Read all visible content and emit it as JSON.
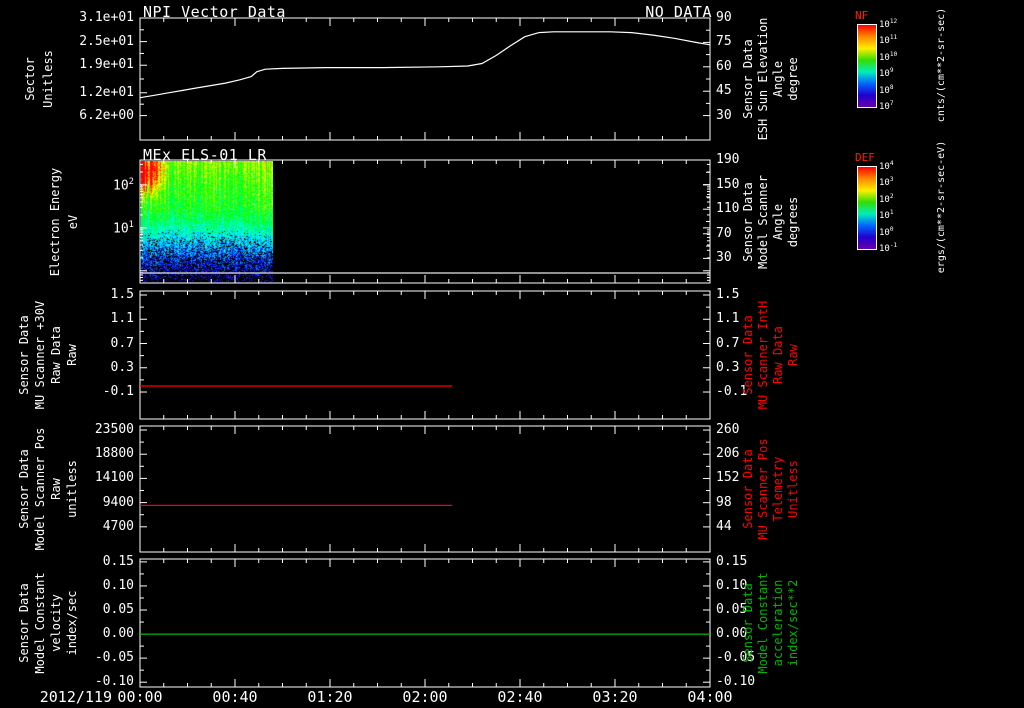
{
  "screen": {
    "background": "#000000",
    "foreground": "#ffffff"
  },
  "x_axis": {
    "date_label": "2012/119",
    "tick_labels": [
      "00:00",
      "00:40",
      "01:20",
      "02:00",
      "02:40",
      "03:20",
      "04:00"
    ],
    "range_hours": [
      0,
      4
    ],
    "major_tick_minutes": 40,
    "minor_tick_minutes": 10
  },
  "colorbars": [
    {
      "title": "NF",
      "title_color": "#ff2200",
      "tick_exponents": [
        12,
        11,
        10,
        9,
        8,
        7
      ],
      "unit": "cnts/(cm**2-sr-sec)"
    },
    {
      "title": "DEF",
      "title_color": "#ff2200",
      "tick_exponents": [
        4,
        3,
        2,
        1,
        0,
        -1
      ],
      "unit": "ergs/(cm**2-sr-sec-eV)"
    }
  ],
  "chart_data": [
    {
      "type": "line",
      "title": "NPI Vector Data",
      "overlay": "NO DATA",
      "left_axis": {
        "name_lines": [
          "Sector",
          "Unitless"
        ],
        "ticks": [
          "3.1e+01",
          "2.5e+01",
          "1.9e+01",
          "1.2e+01",
          "6.2e+00"
        ],
        "ylim": [
          0,
          31
        ],
        "color": "#ffffff"
      },
      "right_axis": {
        "name_lines": [
          "Sensor Data",
          "ESH Sun Elevation",
          "Angle",
          "degree"
        ],
        "ticks": [
          "90",
          "75",
          "60",
          "45",
          "30"
        ],
        "ylim": [
          15,
          90
        ],
        "color": "#ffffff"
      },
      "series": [
        {
          "name": "ESH Sun Elevation Angle",
          "axis": "right",
          "color": "#ffffff",
          "x_hours": [
            0,
            0.1,
            0.2,
            0.3,
            0.4,
            0.5,
            0.6,
            0.7,
            0.78,
            0.82,
            0.88,
            1.0,
            1.3,
            1.7,
            2.1,
            2.3,
            2.4,
            2.5,
            2.6,
            2.7,
            2.8,
            2.9,
            3.1,
            3.3,
            3.45,
            3.6,
            3.75,
            3.9,
            4.0
          ],
          "y": [
            41,
            42.5,
            44,
            45.5,
            47,
            48.5,
            50,
            52,
            54,
            57,
            58.5,
            59,
            59.5,
            59.5,
            60,
            60.5,
            62,
            67,
            73,
            78.5,
            81,
            81.5,
            81.5,
            81.5,
            81,
            79.5,
            77.5,
            75,
            73.5
          ]
        }
      ]
    },
    {
      "type": "spectrogram",
      "title": "MEx ELS-01 LR",
      "left_axis": {
        "name_lines": [
          "Electron Energy",
          "eV"
        ],
        "ticks": [
          "10^2",
          "10^1"
        ],
        "scale": "log",
        "ylim": [
          0.52,
          380
        ],
        "color": "#ffffff"
      },
      "right_axis": {
        "name_lines": [
          "Sensor Data",
          "Model Scanner",
          "Angle",
          "degrees"
        ],
        "ticks": [
          "190",
          "150",
          "110",
          "70",
          "30"
        ],
        "ylim": [
          -10,
          190
        ],
        "color": "#ffffff"
      },
      "spectrogram": {
        "time_extent_hours": [
          0,
          0.93
        ],
        "energy_range_ev": [
          0.52,
          380
        ],
        "colorbar": "DEF",
        "seed": 7,
        "description": "Intense red-orange electron flux above ~30 eV at start decaying into yellow-green band 5-100 eV; sparse blue low-flux speckles below ~3 eV; no data after ~00:56"
      },
      "series": [
        {
          "name": "lowest-energy trace",
          "axis": "left",
          "color": "#e8e8e8",
          "x_hours": [
            0,
            4
          ],
          "y": [
            0.89,
            0.89
          ]
        }
      ]
    },
    {
      "type": "line",
      "left_axis": {
        "name_lines": [
          "Sensor Data",
          "MU Scanner +30V",
          "Raw Data",
          "Raw"
        ],
        "ticks": [
          "1.5",
          "1.1",
          "0.7",
          "0.3",
          "-0.1"
        ],
        "ylim": [
          -0.545,
          1.566
        ],
        "color": "#ffffff"
      },
      "right_axis": {
        "name_lines": [
          "Sensor Data",
          "MU Scanner IntH",
          "Raw Data",
          "Raw"
        ],
        "ticks": [
          "1.5",
          "1.1",
          "0.7",
          "0.3",
          "-0.1"
        ],
        "ylim": [
          -0.545,
          1.566
        ],
        "color": "#ff0000"
      },
      "series": [
        {
          "name": "MU Scanner IntH Raw",
          "axis": "right",
          "color": "#ff0000",
          "x_hours": [
            0,
            2.19
          ],
          "y": [
            0,
            0
          ]
        }
      ]
    },
    {
      "type": "line",
      "left_axis": {
        "name_lines": [
          "Sensor Data",
          "Model Scanner Pos",
          "Raw",
          "unitless"
        ],
        "ticks": [
          "23500",
          "18800",
          "14100",
          "9400",
          "4700"
        ],
        "ylim": [
          -194,
          24277
        ],
        "color": "#ffffff"
      },
      "right_axis": {
        "name_lines": [
          "Sensor Data",
          "MU Scanner Pos",
          "Telemetry",
          "Unitless"
        ],
        "ticks": [
          "260",
          "206",
          "152",
          "98",
          "44"
        ],
        "ylim": [
          -12,
          269
        ],
        "color": "#ff0000"
      },
      "series": [
        {
          "name": "MU Scanner Pos Telemetry",
          "axis": "right",
          "color": "#ff0000",
          "x_hours": [
            0,
            2.19
          ],
          "y": [
            92,
            92
          ]
        }
      ]
    },
    {
      "type": "line",
      "left_axis": {
        "name_lines": [
          "Sensor Data",
          "Model Constant",
          "velocity",
          "index/sec"
        ],
        "ticks": [
          "0.15",
          "0.10",
          "0.05",
          "0.00",
          "-0.05",
          "-0.10"
        ],
        "ylim": [
          -0.11,
          0.156
        ],
        "color": "#ffffff"
      },
      "right_axis": {
        "name_lines": [
          "Sensor Data",
          "Model Constant",
          "acceleration",
          "index/sec**2"
        ],
        "ticks": [
          "0.15",
          "0.10",
          "0.05",
          "0.00",
          "-0.05",
          "-0.10"
        ],
        "ylim": [
          -0.11,
          0.156
        ],
        "color": "#00b400"
      },
      "series": [
        {
          "name": "Model Constant acceleration",
          "axis": "right",
          "color": "#00b400",
          "x_hours": [
            0,
            4
          ],
          "y": [
            0,
            0
          ]
        }
      ]
    }
  ]
}
